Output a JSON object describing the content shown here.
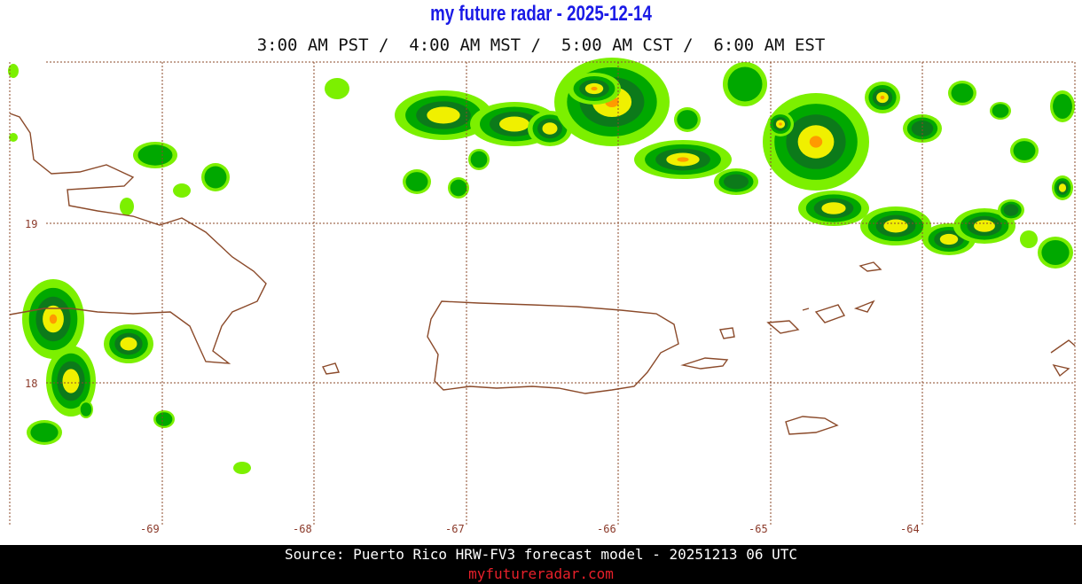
{
  "header": {
    "title": "my future radar - 2025-12-14",
    "times": "3:00 AM PST /  4:00 AM MST /  5:00 AM CST /  6:00 AM EST"
  },
  "map": {
    "lat_labels": [
      "19",
      "18"
    ],
    "lon_labels": [
      "-69",
      "-68",
      "-67",
      "-66",
      "-65",
      "-64"
    ]
  },
  "footer": {
    "source": "Source: Puerto Rico HRW-FV3 forecast model - 20251213 06 UTC",
    "site": "myfutureradar.com"
  }
}
